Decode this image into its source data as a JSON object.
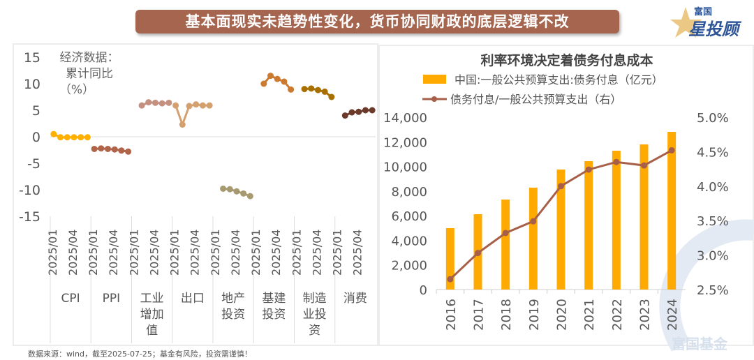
{
  "banner": {
    "title": "基本面现实未趋势性变化，货币协同财政的底层逻辑不改"
  },
  "logo": {
    "top": "富国",
    "bottom": "星投顾"
  },
  "watermark": "富国基金",
  "source": "数据来源：wind，截至2025-07-25；基金有风险，投资需谨慎！",
  "chart_data": [
    {
      "type": "line",
      "title": "",
      "annotation": [
        "经济数据：",
        "累计同比",
        "（%）"
      ],
      "ylim": [
        -15,
        15
      ],
      "yticks": [
        15,
        10,
        5,
        0,
        -5,
        -10,
        -15
      ],
      "month_labels": [
        "2025/01",
        "2025/04"
      ],
      "groups": [
        {
          "name": "CPI",
          "label_lines": [
            "CPI"
          ],
          "color": "#FFB000",
          "values": [
            0.5,
            -0.1,
            -0.1,
            -0.1,
            -0.1,
            -0.1
          ]
        },
        {
          "name": "PPI",
          "label_lines": [
            "PPI"
          ],
          "color": "#B0654A",
          "values": [
            -2.3,
            -2.2,
            -2.3,
            -2.4,
            -2.6,
            -2.8
          ]
        },
        {
          "name": "工业增加值",
          "label_lines": [
            "工业",
            "增加",
            "值"
          ],
          "color": "#C4907F",
          "values": [
            null,
            5.9,
            6.5,
            6.4,
            6.3,
            6.4
          ]
        },
        {
          "name": "出口",
          "label_lines": [
            "出口"
          ],
          "color": "#D4A070",
          "values": [
            5.9,
            2.3,
            5.8,
            6.1,
            5.9,
            5.9
          ]
        },
        {
          "name": "地产投资",
          "label_lines": [
            "地产",
            "投资"
          ],
          "color": "#A89A70",
          "values": [
            null,
            -9.8,
            -9.9,
            -10.3,
            -10.7,
            -11.2
          ]
        },
        {
          "name": "基建投资",
          "label_lines": [
            "基建",
            "投资"
          ],
          "color": "#CC7A30",
          "values": [
            null,
            10.0,
            11.5,
            10.9,
            10.4,
            8.9
          ]
        },
        {
          "name": "制造业投资",
          "label_lines": [
            "制造",
            "业投",
            "资"
          ],
          "color": "#A87000",
          "values": [
            null,
            9.0,
            9.1,
            8.8,
            8.5,
            7.5
          ]
        },
        {
          "name": "消费",
          "label_lines": [
            "消费"
          ],
          "color": "#6B3A2A",
          "values": [
            null,
            4.0,
            4.6,
            4.7,
            5.0,
            5.0
          ]
        }
      ]
    },
    {
      "type": "bar+line",
      "title": "利率环境决定着债务付息成本",
      "categories": [
        "2016",
        "2017",
        "2018",
        "2019",
        "2020",
        "2021",
        "2022",
        "2023",
        "2024"
      ],
      "series": [
        {
          "name": "中国:一般公共预算支出:债务付息（亿元）",
          "type": "bar",
          "axis": "left",
          "color": "#FFAA00",
          "values": [
            4990,
            6120,
            7310,
            8280,
            9750,
            10430,
            11280,
            11790,
            12810
          ]
        },
        {
          "name": "债务付息/一般公共预算支出（右）",
          "type": "line",
          "axis": "right",
          "color": "#A85F48",
          "values": [
            2.65,
            3.03,
            3.32,
            3.49,
            4.0,
            4.24,
            4.35,
            4.3,
            4.52
          ]
        }
      ],
      "ylim_left": [
        0,
        14000
      ],
      "yticks_left": [
        "14,000",
        "12,000",
        "10,000",
        "8,000",
        "6,000",
        "4,000",
        "2,000",
        "0"
      ],
      "ylim_right": [
        2.5,
        5.0
      ],
      "yticks_right": [
        "5.0%",
        "4.5%",
        "4.0%",
        "3.5%",
        "3.0%",
        "2.5%"
      ]
    }
  ]
}
